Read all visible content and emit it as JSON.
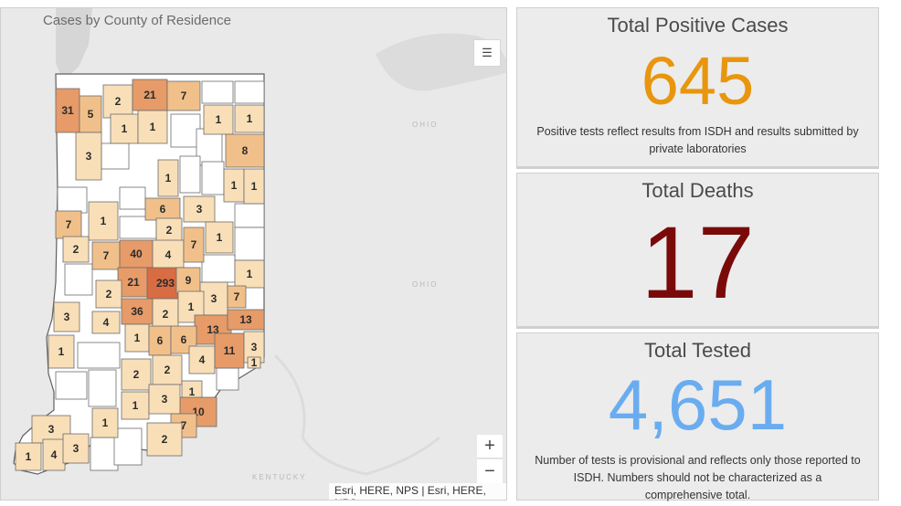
{
  "map": {
    "title": "Cases by County of Residence",
    "attribution": "Esri, HERE, NPS | Esri, HERE, NPS",
    "legend_icon": "legend-list-icon",
    "zoom_in_label": "+",
    "zoom_out_label": "−",
    "basemap_labels": [
      "OHIO",
      "OHIO",
      "KENTUCKY"
    ],
    "county_counts": [
      "31",
      "5",
      "2",
      "21",
      "7",
      "1",
      "1",
      "1",
      "1",
      "3",
      "8",
      "1",
      "1",
      "1",
      "6",
      "3",
      "1",
      "7",
      "2",
      "1",
      "2",
      "7",
      "40",
      "4",
      "7",
      "1",
      "21",
      "293",
      "9",
      "2",
      "3",
      "7",
      "36",
      "2",
      "1",
      "3",
      "4",
      "13",
      "13",
      "1",
      "6",
      "1",
      "6",
      "4",
      "11",
      "3",
      "1",
      "2",
      "2",
      "1",
      "10",
      "1",
      "3",
      "7",
      "1",
      "2",
      "3",
      "1",
      "4",
      "3"
    ],
    "colors": {
      "low": "#f8dfb8",
      "mid": "#f1c08a",
      "high": "#e69b68",
      "top": "#d86c43",
      "none": "#ffffff"
    }
  },
  "cards": {
    "positive": {
      "title": "Total Positive Cases",
      "value": "645",
      "note": "Positive tests reflect results from ISDH and results submitted by private laboratories",
      "color": "#e8960d"
    },
    "deaths": {
      "title": "Total Deaths",
      "value": "17",
      "color": "#7a0a0a"
    },
    "tested": {
      "title": "Total Tested",
      "value": "4,651",
      "note": "Number of tests is provisional and reflects only those reported to ISDH. Numbers should not be characterized as a comprehensive total.",
      "color": "#6aacf0"
    }
  }
}
